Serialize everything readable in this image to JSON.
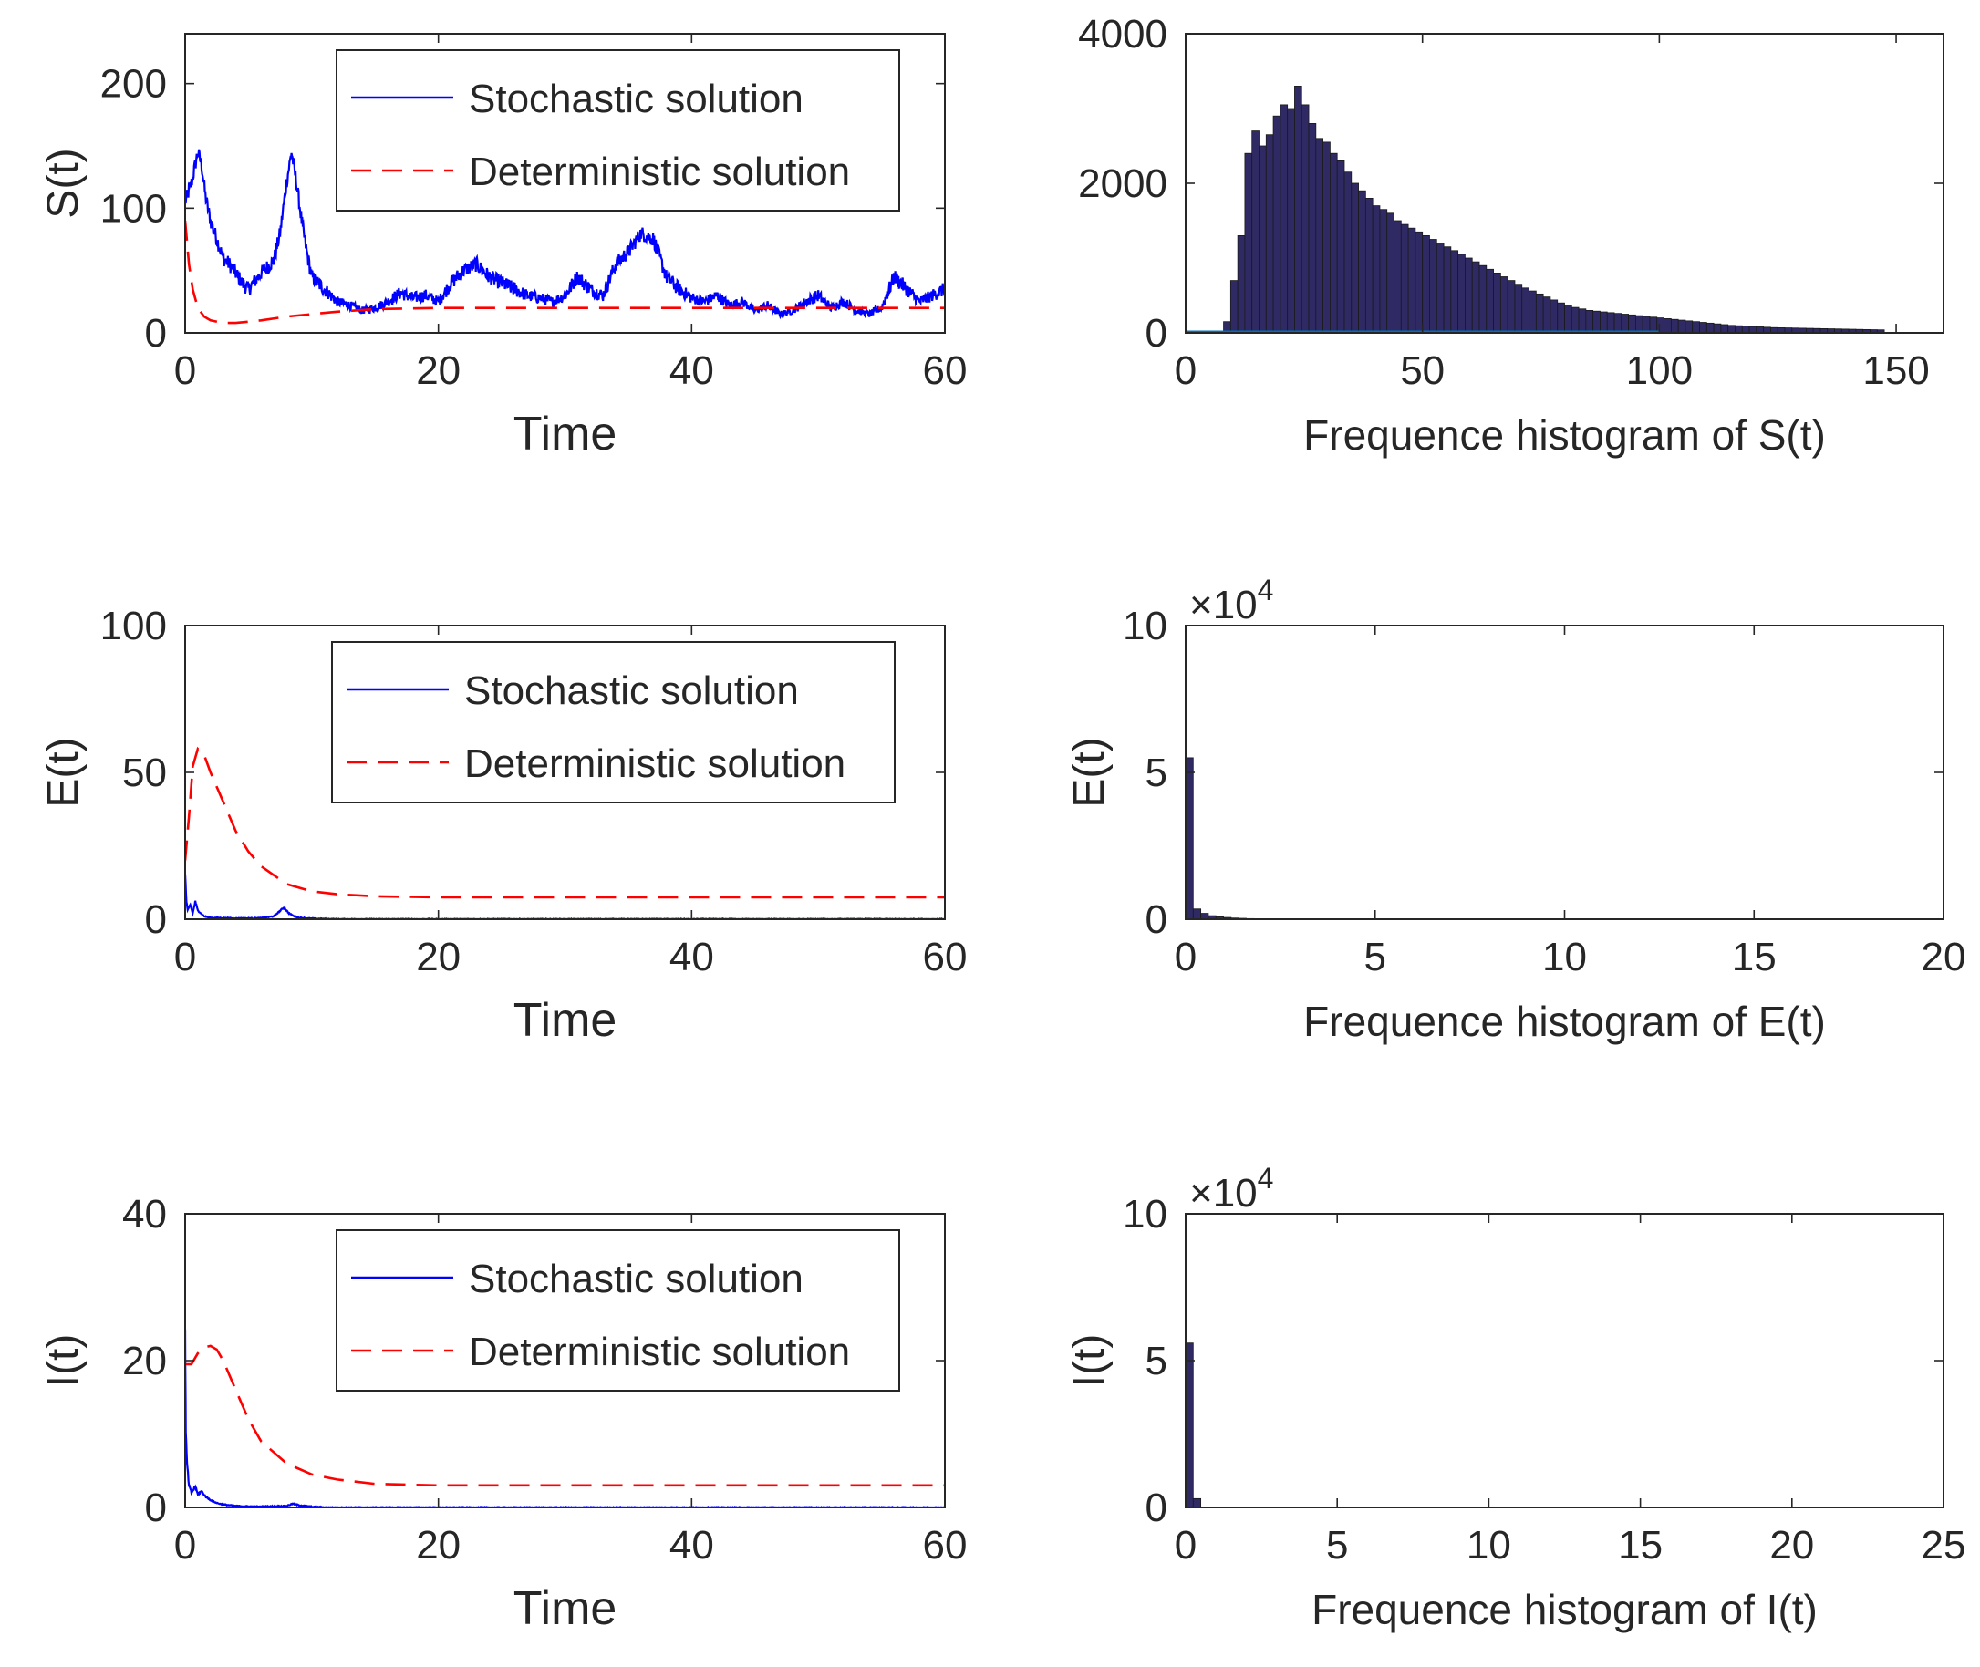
{
  "chart_data": [
    {
      "type": "line",
      "xlabel": "Time",
      "ylabel": "S(t)",
      "xlim": [
        0,
        60
      ],
      "ylim": [
        0,
        240
      ],
      "xticks": [
        0,
        20,
        40,
        60
      ],
      "yticks": [
        0,
        100,
        200
      ],
      "legend": {
        "placement": "top-right",
        "entries": [
          "Stochastic solution",
          "Deterministic solution"
        ]
      },
      "series": [
        {
          "name": "Stochastic solution",
          "color": "#0000ff",
          "style": "solid",
          "noise": 6,
          "x": [
            0,
            0.5,
            1,
            1.3,
            1.6,
            2,
            2.5,
            3,
            3.5,
            4,
            4.5,
            5,
            6,
            7,
            7.5,
            8,
            8.4,
            8.8,
            9.2,
            9.6,
            10,
            11,
            12,
            13,
            14,
            15,
            16,
            17,
            18,
            19,
            20,
            21,
            22,
            23,
            24,
            25,
            26,
            27,
            28,
            29,
            30,
            31,
            32,
            33,
            34,
            35,
            36,
            37,
            37.5,
            38,
            39,
            40,
            41,
            42,
            43,
            44,
            45,
            46,
            47,
            48,
            49,
            50,
            51,
            52,
            53,
            54,
            55,
            56,
            57,
            58,
            59,
            60
          ],
          "y": [
            105,
            120,
            145,
            135,
            110,
            90,
            75,
            60,
            55,
            48,
            40,
            35,
            48,
            58,
            80,
            120,
            145,
            120,
            90,
            65,
            45,
            35,
            25,
            22,
            18,
            20,
            25,
            32,
            28,
            30,
            25,
            40,
            50,
            55,
            45,
            40,
            35,
            30,
            28,
            25,
            30,
            45,
            35,
            30,
            55,
            65,
            80,
            75,
            60,
            45,
            35,
            28,
            25,
            30,
            22,
            25,
            18,
            22,
            15,
            18,
            25,
            30,
            20,
            25,
            18,
            15,
            20,
            45,
            35,
            25,
            30,
            35
          ]
        },
        {
          "name": "Deterministic solution",
          "color": "#ff0000",
          "style": "dashed",
          "x": [
            0,
            0.3,
            0.6,
            1,
            1.5,
            2,
            3,
            4,
            5,
            6,
            8,
            10,
            12,
            15,
            20,
            30,
            40,
            50,
            60
          ],
          "y": [
            90,
            55,
            35,
            20,
            13,
            10,
            8,
            8,
            9,
            10,
            13,
            15,
            17,
            19,
            20,
            20,
            20,
            20,
            20
          ]
        }
      ]
    },
    {
      "type": "bar",
      "xlabel": "Frequence histogram of S(t)",
      "ylabel": "",
      "xlim": [
        0,
        160
      ],
      "ylim": [
        0,
        4000
      ],
      "xticks": [
        0,
        50,
        100,
        150
      ],
      "yticks": [
        0,
        2000,
        4000
      ],
      "bar_color": "#2f2a63",
      "baseline_color": "#0072bd",
      "bin_start": 8,
      "bin_width": 1.5,
      "values": [
        150,
        700,
        1300,
        2400,
        2700,
        2500,
        2650,
        2900,
        3050,
        3000,
        3300,
        3050,
        2800,
        2600,
        2550,
        2400,
        2300,
        2150,
        2000,
        1900,
        1800,
        1700,
        1650,
        1600,
        1500,
        1450,
        1400,
        1350,
        1300,
        1250,
        1200,
        1150,
        1100,
        1050,
        1000,
        950,
        900,
        850,
        800,
        750,
        700,
        650,
        600,
        560,
        520,
        480,
        440,
        400,
        370,
        340,
        320,
        300,
        290,
        280,
        270,
        260,
        250,
        240,
        230,
        220,
        210,
        200,
        190,
        180,
        170,
        160,
        150,
        140,
        130,
        120,
        110,
        100,
        95,
        90,
        85,
        80,
        75,
        70,
        68,
        66,
        64,
        62,
        60,
        58,
        56,
        54,
        52,
        50,
        48,
        46,
        44,
        42,
        40
      ]
    },
    {
      "type": "line",
      "xlabel": "Time",
      "ylabel": "E(t)",
      "xlim": [
        0,
        60
      ],
      "ylim": [
        0,
        100
      ],
      "xticks": [
        0,
        20,
        40,
        60
      ],
      "yticks": [
        0,
        50,
        100
      ],
      "legend": {
        "placement": "top-right",
        "entries": [
          "Stochastic solution",
          "Deterministic solution"
        ]
      },
      "series": [
        {
          "name": "Stochastic solution",
          "color": "#0000ff",
          "style": "solid",
          "noise": 1,
          "x": [
            0,
            0.1,
            0.2,
            0.4,
            0.6,
            0.8,
            1,
            1.5,
            2,
            3,
            4,
            5,
            6,
            7,
            7.8,
            8.2,
            8.6,
            9,
            10,
            12,
            60
          ],
          "y": [
            15,
            6,
            3,
            5,
            2,
            6,
            3,
            1,
            0.5,
            0.4,
            0.3,
            0.3,
            0.4,
            1,
            4,
            2,
            1,
            0.5,
            0.2,
            0,
            0
          ]
        },
        {
          "name": "Deterministic solution",
          "color": "#ff0000",
          "style": "dashed",
          "x": [
            0,
            0.3,
            0.6,
            1,
            1.5,
            2,
            3,
            4,
            5,
            6,
            8,
            10,
            12,
            15,
            20,
            30,
            40,
            50,
            60
          ],
          "y": [
            20,
            35,
            52,
            58,
            56,
            50,
            40,
            30,
            23,
            18,
            12,
            9.5,
            8.5,
            7.8,
            7.5,
            7.5,
            7.5,
            7.5,
            7.5
          ]
        }
      ]
    },
    {
      "type": "bar",
      "xlabel": "Frequence histogram of E(t)",
      "ylabel": "E(t)",
      "xlim": [
        0,
        20
      ],
      "ylim": [
        0,
        10
      ],
      "xticks": [
        0,
        5,
        10,
        15,
        20
      ],
      "yticks": [
        0,
        5,
        10
      ],
      "exponent": "×10",
      "exponent_power": "4",
      "bar_color": "#2f2a63",
      "bin_start": 0,
      "bin_width": 0.2,
      "values": [
        5.5,
        0.35,
        0.2,
        0.12,
        0.08,
        0.06,
        0.04,
        0.03,
        0.02,
        0.015
      ]
    },
    {
      "type": "line",
      "xlabel": "Time",
      "ylabel": "I(t)",
      "xlim": [
        0,
        60
      ],
      "ylim": [
        0,
        40
      ],
      "xticks": [
        0,
        20,
        40,
        60
      ],
      "yticks": [
        0,
        20,
        40
      ],
      "legend": {
        "placement": "top-right",
        "entries": [
          "Stochastic solution",
          "Deterministic solution"
        ]
      },
      "series": [
        {
          "name": "Stochastic solution",
          "color": "#0000ff",
          "style": "solid",
          "noise": 0.4,
          "x": [
            0,
            0.05,
            0.15,
            0.3,
            0.5,
            0.8,
            1,
            1.3,
            1.6,
            2,
            2.5,
            3,
            4,
            6,
            8,
            8.5,
            9,
            10,
            11,
            60
          ],
          "y": [
            24,
            10,
            6,
            3,
            2,
            2.8,
            1.8,
            2.2,
            1.5,
            1,
            0.6,
            0.4,
            0.2,
            0.1,
            0.2,
            0.5,
            0.3,
            0.1,
            0,
            0
          ]
        },
        {
          "name": "Deterministic solution",
          "color": "#ff0000",
          "style": "dashed",
          "x": [
            0,
            0.5,
            1,
            1.5,
            2,
            2.5,
            3,
            4,
            5,
            6,
            8,
            10,
            12,
            15,
            20,
            30,
            40,
            50,
            60
          ],
          "y": [
            19.5,
            19.5,
            21,
            21.8,
            22,
            21.5,
            20,
            16,
            12,
            9,
            6,
            4.5,
            3.8,
            3.2,
            3,
            3,
            3,
            3,
            3
          ]
        }
      ]
    },
    {
      "type": "bar",
      "xlabel": "Frequence histogram of I(t)",
      "ylabel": "I(t)",
      "xlim": [
        0,
        25
      ],
      "ylim": [
        0,
        10
      ],
      "xticks": [
        0,
        5,
        10,
        15,
        20,
        25
      ],
      "yticks": [
        0,
        5,
        10
      ],
      "exponent": "×10",
      "exponent_power": "4",
      "bar_color": "#2f2a63",
      "bin_start": 0,
      "bin_width": 0.25,
      "values": [
        5.6,
        0.3
      ]
    }
  ]
}
